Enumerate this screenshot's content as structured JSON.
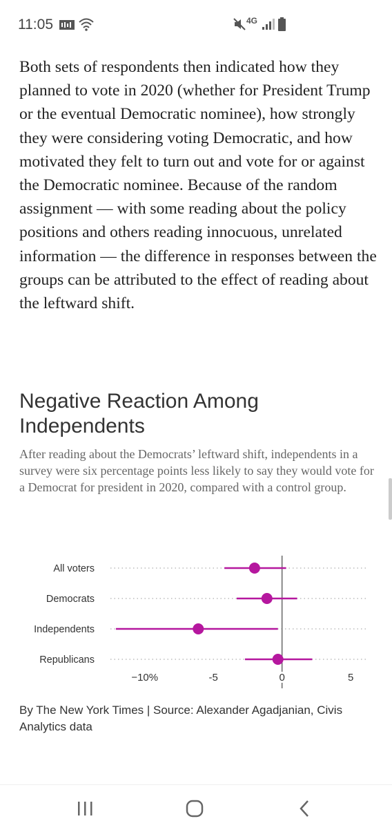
{
  "status_bar": {
    "time": "11:05",
    "network": "4G"
  },
  "article": {
    "paragraph": "Both sets of respondents then indicated how they planned to vote in 2020 (whether for President Trump or the eventual Democratic nominee), how strongly they were considering voting Democratic, and how motivated they felt to turn out and vote for or against the Democratic nominee. Because of the random assignment — with some reading about the policy positions and others reading innocuous, unrelated information — the difference in responses between the groups can be attributed to the effect of reading about the leftward shift."
  },
  "chart_section": {
    "title_line1": "Negative Reaction Among",
    "title_line2": "Independents",
    "subtitle": "After reading about the Democrats’ leftward shift, independents in a survey were six percentage points less likely to say they would vote for a Democrat for president in 2020, compared with a control group.",
    "credit": "By The New York Times | Source:  Alexander Agadjanian, Civis Analytics data"
  },
  "chart_data": {
    "type": "scatter",
    "categories": [
      "All voters",
      "Democrats",
      "Independents",
      "Republicans"
    ],
    "series": [
      {
        "values": [
          -2,
          -1.1,
          -6.1,
          -0.3
        ],
        "ci_low": [
          -4.2,
          -3.3,
          -12.1,
          -2.7
        ],
        "ci_high": [
          0.3,
          1.1,
          -0.3,
          2.2
        ]
      }
    ],
    "x_ticks": [
      -10,
      -5,
      0,
      5
    ],
    "x_tick_labels": [
      "−10%",
      "-5",
      "0",
      "5"
    ],
    "xlim": [
      -12.5,
      6.2
    ],
    "colors": {
      "point": "#b5179e",
      "ci": "#b5179e",
      "zero_line": "#666666",
      "grid": "#bbbbbb"
    }
  },
  "nav_bar": {
    "recent_icon": "recent-apps-icon",
    "home_icon": "home-icon",
    "back_icon": "back-icon"
  }
}
